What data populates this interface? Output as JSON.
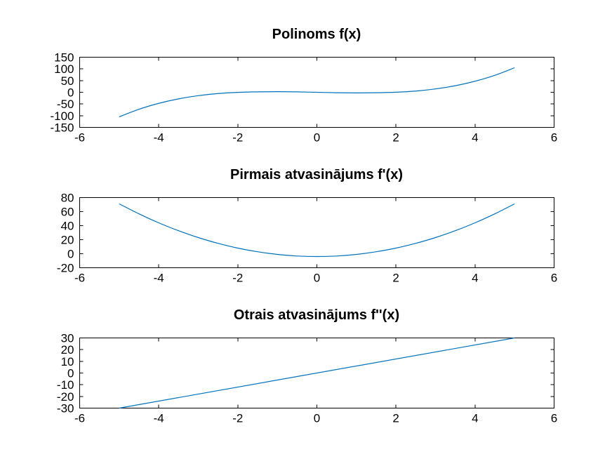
{
  "line_color": "#0072bd",
  "chart_data": [
    {
      "type": "line",
      "title": "Polinoms f(x)",
      "xlim": [
        -6,
        6
      ],
      "ylim": [
        -150,
        150
      ],
      "xticks": [
        "-6",
        "-4",
        "-2",
        "0",
        "2",
        "4",
        "6"
      ],
      "yticks": [
        "150",
        "100",
        "50",
        "0",
        "-50",
        "-100",
        "-150"
      ],
      "x": [
        -5,
        -4.5,
        -4,
        -3.5,
        -3,
        -2.5,
        -2,
        -1.5,
        -1,
        -0.5,
        0,
        0.5,
        1,
        1.5,
        2,
        2.5,
        3,
        3.5,
        4,
        4.5,
        5
      ],
      "y": [
        -105,
        -72.6,
        -47.3,
        -28.1,
        -14.4,
        -5.3,
        -0.4,
        1.9,
        2.6,
        1.8,
        0,
        -1.8,
        -2.6,
        -1.9,
        0.4,
        5.3,
        14.4,
        28.1,
        47.3,
        72.6,
        105
      ]
    },
    {
      "type": "line",
      "title": "Pirmais atvasinājums f'(x)",
      "xlim": [
        -6,
        6
      ],
      "ylim": [
        -20,
        80
      ],
      "xticks": [
        "-6",
        "-4",
        "-2",
        "0",
        "2",
        "4",
        "6"
      ],
      "yticks": [
        "80",
        "60",
        "40",
        "20",
        "0",
        "-20"
      ],
      "x": [
        -5,
        -4.5,
        -4,
        -3.5,
        -3,
        -2.5,
        -2,
        -1.5,
        -1,
        -0.5,
        0,
        0.5,
        1,
        1.5,
        2,
        2.5,
        3,
        3.5,
        4,
        4.5,
        5
      ],
      "y": [
        71,
        56.8,
        44,
        32.8,
        23,
        14.8,
        8,
        2.8,
        -1,
        -3.3,
        -4,
        -3.3,
        -1,
        2.8,
        8,
        14.8,
        23,
        32.8,
        44,
        56.8,
        71
      ]
    },
    {
      "type": "line",
      "title": "Otrais atvasinājums f''(x)",
      "xlim": [
        -6,
        6
      ],
      "ylim": [
        -30,
        30
      ],
      "xticks": [
        "-6",
        "-4",
        "-2",
        "0",
        "2",
        "4",
        "6"
      ],
      "yticks": [
        "30",
        "20",
        "10",
        "0",
        "-10",
        "-20",
        "-30"
      ],
      "x": [
        -5,
        5
      ],
      "y": [
        -30,
        30
      ]
    }
  ]
}
